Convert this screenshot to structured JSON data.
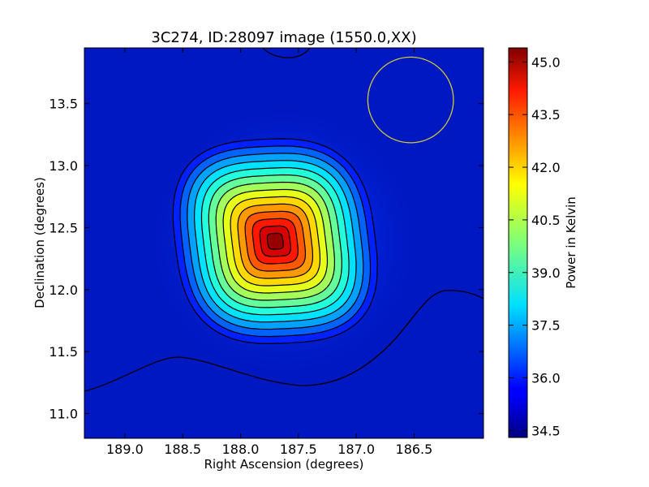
{
  "chart_data": {
    "type": "heatmap",
    "title": "3C274, ID:28097 image (1550.0,XX)",
    "xlabel": "Right Ascension (degrees)",
    "ylabel": "Declination (degrees)",
    "xlim": [
      189.35,
      185.9
    ],
    "ylim": [
      10.8,
      13.95
    ],
    "x_ticks": [
      189.0,
      188.5,
      188.0,
      187.5,
      187.0,
      186.5
    ],
    "x_tick_labels": [
      "189.0",
      "188.5",
      "188.0",
      "187.5",
      "187.0",
      "186.5"
    ],
    "y_ticks": [
      11.0,
      11.5,
      12.0,
      12.5,
      13.0,
      13.5
    ],
    "y_tick_labels": [
      "11.0",
      "11.5",
      "12.0",
      "12.5",
      "13.0",
      "13.5"
    ],
    "colormap": "jet",
    "value_range": [
      34.3,
      45.4
    ],
    "source_peak": {
      "ra": 187.7,
      "dec": 12.39,
      "value": 45.2
    },
    "beam_circle": {
      "ra": 186.53,
      "dec": 13.53,
      "radius_deg": 0.37,
      "color": "#cccc33"
    },
    "grid": false,
    "colorbar": {
      "label": "Power in Kelvin",
      "ticks": [
        34.5,
        36.0,
        37.5,
        39.0,
        40.5,
        42.0,
        43.5,
        45.0
      ],
      "tick_labels": [
        "34.5",
        "36.0",
        "37.5",
        "39.0",
        "40.5",
        "42.0",
        "43.5",
        "45.0"
      ],
      "placement": "right"
    }
  }
}
